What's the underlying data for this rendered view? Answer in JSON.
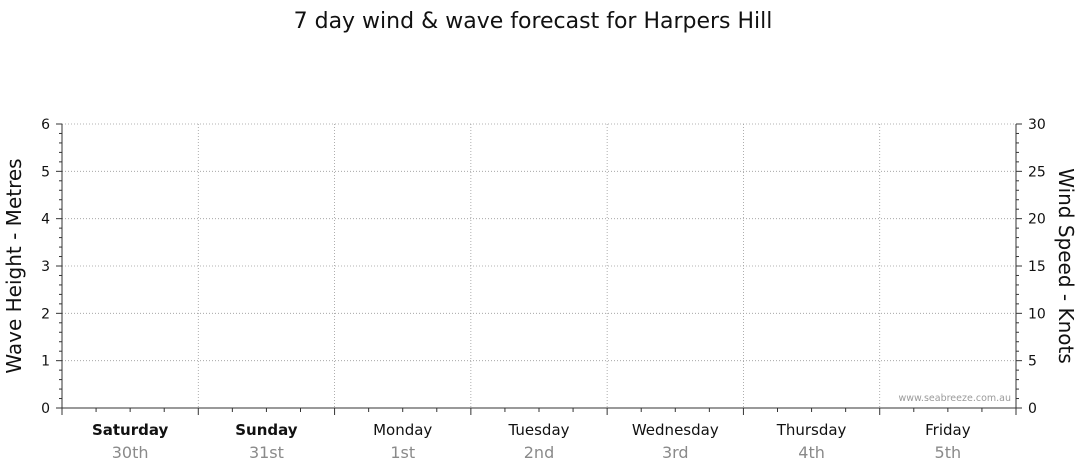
{
  "chart_data": {
    "type": "line",
    "title": "7 day wind & wave forecast for Harpers Hill",
    "ylabel_left": "Wave Height - Metres",
    "ylabel_right": "Wind Speed - Knots",
    "ylim_left": [
      0,
      6
    ],
    "ylim_right": [
      0,
      30
    ],
    "yticks_left": [
      "0",
      "1",
      "2",
      "3",
      "4",
      "5",
      "6"
    ],
    "yticks_right": [
      "0",
      "5",
      "10",
      "15",
      "20",
      "25",
      "30"
    ],
    "grid": true,
    "days": [
      {
        "day": "Saturday",
        "date": "30th",
        "bold": true
      },
      {
        "day": "Sunday",
        "date": "31st",
        "bold": true
      },
      {
        "day": "Monday",
        "date": "1st",
        "bold": false
      },
      {
        "day": "Tuesday",
        "date": "2nd",
        "bold": false
      },
      {
        "day": "Wednesday",
        "date": "3rd",
        "bold": false
      },
      {
        "day": "Thursday",
        "date": "4th",
        "bold": false
      },
      {
        "day": "Friday",
        "date": "5th",
        "bold": false
      }
    ],
    "series": [],
    "watermark": "www.seabreeze.com.au"
  }
}
